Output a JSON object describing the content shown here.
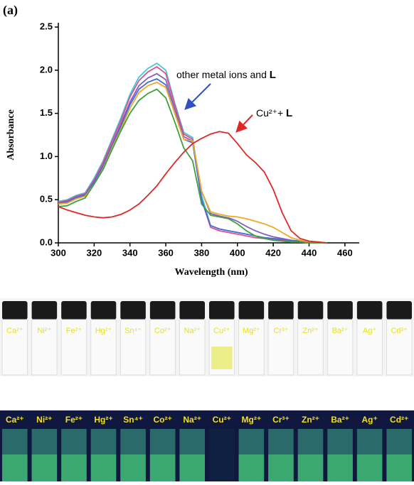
{
  "panel_label": "(a)",
  "chart_data": {
    "type": "line",
    "x_label": "Wavelength (nm)",
    "y_label": "Absorbance",
    "x": [
      300,
      305,
      310,
      315,
      320,
      325,
      330,
      335,
      340,
      345,
      350,
      355,
      360,
      365,
      370,
      375,
      380,
      385,
      390,
      395,
      400,
      405,
      410,
      415,
      420,
      425,
      430,
      435,
      440,
      445,
      450
    ],
    "series": [
      {
        "color": "#40c8d8",
        "values": [
          0.48,
          0.5,
          0.55,
          0.58,
          0.75,
          0.95,
          1.2,
          1.45,
          1.72,
          1.92,
          2.02,
          2.08,
          2.0,
          1.62,
          1.28,
          1.22,
          0.55,
          0.2,
          0.16,
          0.14,
          0.12,
          0.1,
          0.08,
          0.06,
          0.05,
          0.04,
          0.03,
          0.02,
          0.01,
          0.01,
          0
        ]
      },
      {
        "color": "#e0508a",
        "values": [
          0.47,
          0.49,
          0.54,
          0.57,
          0.73,
          0.93,
          1.18,
          1.42,
          1.69,
          1.88,
          1.98,
          2.04,
          1.96,
          1.6,
          1.26,
          1.2,
          0.5,
          0.18,
          0.14,
          0.12,
          0.1,
          0.08,
          0.06,
          0.05,
          0.04,
          0.03,
          0.02,
          0.01,
          0.01,
          0,
          0
        ]
      },
      {
        "color": "#8060c0",
        "values": [
          0.46,
          0.48,
          0.53,
          0.56,
          0.71,
          0.9,
          1.14,
          1.38,
          1.63,
          1.82,
          1.91,
          1.96,
          1.89,
          1.55,
          1.23,
          1.18,
          0.6,
          0.34,
          0.31,
          0.29,
          0.25,
          0.19,
          0.14,
          0.1,
          0.07,
          0.05,
          0.03,
          0.02,
          0.01,
          0,
          0
        ]
      },
      {
        "color": "#4a6ad8",
        "values": [
          0.45,
          0.47,
          0.52,
          0.55,
          0.7,
          0.88,
          1.12,
          1.35,
          1.6,
          1.78,
          1.86,
          1.9,
          1.83,
          1.5,
          1.2,
          1.16,
          0.5,
          0.2,
          0.16,
          0.14,
          0.12,
          0.1,
          0.08,
          0.06,
          0.05,
          0.04,
          0.03,
          0.02,
          0.01,
          0,
          0
        ]
      },
      {
        "color": "#f0a828",
        "values": [
          0.45,
          0.46,
          0.51,
          0.54,
          0.68,
          0.86,
          1.1,
          1.32,
          1.56,
          1.74,
          1.82,
          1.86,
          1.8,
          1.5,
          1.2,
          1.18,
          0.6,
          0.36,
          0.33,
          0.31,
          0.3,
          0.28,
          0.25,
          0.22,
          0.18,
          0.12,
          0.06,
          0.03,
          0.01,
          0,
          0
        ]
      },
      {
        "color": "#3ea040",
        "values": [
          0.42,
          0.43,
          0.48,
          0.52,
          0.68,
          0.85,
          1.08,
          1.3,
          1.5,
          1.65,
          1.73,
          1.78,
          1.68,
          1.4,
          1.1,
          0.95,
          0.45,
          0.32,
          0.3,
          0.28,
          0.22,
          0.14,
          0.08,
          0.05,
          0.03,
          0.02,
          0.01,
          0.01,
          0,
          0,
          0
        ]
      },
      {
        "color": "#e02828",
        "values": [
          0.42,
          0.38,
          0.35,
          0.32,
          0.3,
          0.29,
          0.3,
          0.33,
          0.38,
          0.45,
          0.55,
          0.66,
          0.8,
          0.93,
          1.05,
          1.15,
          1.21,
          1.26,
          1.29,
          1.27,
          1.15,
          1.02,
          0.93,
          0.82,
          0.62,
          0.35,
          0.14,
          0.05,
          0.02,
          0.01,
          0
        ]
      }
    ],
    "xlim": [
      300,
      468
    ],
    "ylim": [
      0,
      2.55
    ],
    "xticks": [
      300,
      320,
      340,
      360,
      380,
      400,
      420,
      440,
      460
    ],
    "yticks": [
      {
        "value": 0,
        "label": "0.0"
      },
      0.5,
      {
        "value": 1,
        "label": "1.0"
      },
      1.5,
      {
        "value": 2,
        "label": "2.0"
      },
      2.5
    ],
    "annotations": [
      {
        "text": "other metal ions and",
        "emphasis": "L"
      },
      {
        "text": "Cu²⁺+",
        "emphasis": "L"
      }
    ]
  },
  "photos": {
    "labels": [
      "Ca²⁺",
      "Ni²⁺",
      "Fe²⁺",
      "Hg²⁺",
      "Sn⁴⁺",
      "Co²⁺",
      "Na²⁺",
      "Cu²⁺",
      "Mg²⁺",
      "Cr³⁺",
      "Zn²⁺",
      "Ba²⁺",
      "Ag⁺",
      "Cd²⁺"
    ]
  }
}
